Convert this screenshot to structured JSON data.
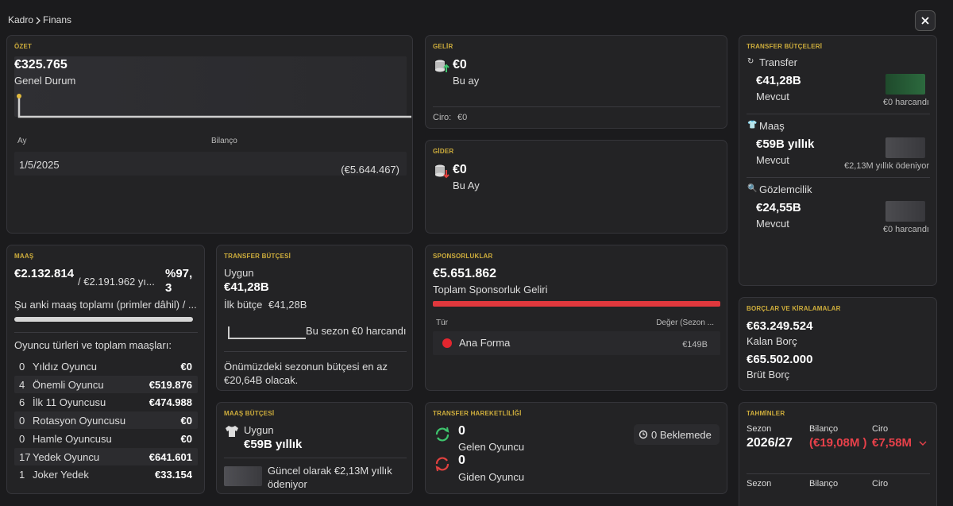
{
  "header": {
    "breadcrumb": [
      "Kadro",
      "Finans"
    ]
  },
  "summary": {
    "title": "ÖZET",
    "amount": "€325.765",
    "label": "Genel Durum",
    "table": {
      "headers": [
        "Ay",
        "Bilanço"
      ],
      "rows": [
        [
          "1/5/2025",
          "(€5.644.467)"
        ]
      ]
    }
  },
  "income": {
    "title": "GELİR",
    "amount": "€0",
    "period": "Bu ay",
    "footer_label": "Ciro:",
    "footer_value": "€0"
  },
  "expense": {
    "title": "GİDER",
    "amount": "€0",
    "period": "Bu Ay"
  },
  "transfer_budgets": {
    "title": "TRANSFER BÜTÇELERİ",
    "items": [
      {
        "name": "Transfer",
        "amount": "€41,28B",
        "status": "Mevcut",
        "note": "€0 harcandı"
      },
      {
        "name": "Maaş",
        "amount": "€59B yıllık",
        "status": "Mevcut",
        "note": "€2,13M yıllık ödeniyor"
      },
      {
        "name": "Gözlemcilik",
        "amount": "€24,55B",
        "status": "Mevcut",
        "note": "€0 harcandı"
      }
    ]
  },
  "wages": {
    "title": "MAAŞ",
    "current": "€2.132.814",
    "total": "/ €2.191.962 yı...",
    "percent": "%97,3",
    "description": "Şu anki maaş toplamı (primler dâhil) / ...",
    "list_title": "Oyuncu türleri ve toplam maaşları:",
    "rows": [
      [
        "0",
        "Yıldız Oyuncu",
        "€0"
      ],
      [
        "4",
        "Önemli Oyuncu",
        "€519.876"
      ],
      [
        "6",
        "İlk 11 Oyuncusu",
        "€474.988"
      ],
      [
        "0",
        "Rotasyon Oyuncusu",
        "€0"
      ],
      [
        "0",
        "Hamle Oyuncusu",
        "€0"
      ],
      [
        "17",
        "Yedek Oyuncu",
        "€641.601"
      ],
      [
        "1",
        "Joker Yedek",
        "€33.154"
      ]
    ]
  },
  "transfer_budget": {
    "title": "TRANSFER BÜTÇESİ",
    "status": "Uygun",
    "amount": "€41,28B",
    "initial_label": "İlk bütçe",
    "initial_value": "€41,28B",
    "spent": "Bu sezon €0 harcandı",
    "next_season": "Önümüzdeki sezonun bütçesi en az €20,64B olacak."
  },
  "wage_budget": {
    "title": "MAAŞ BÜTÇESİ",
    "status": "Uygun",
    "amount": "€59B yıllık",
    "note": "Güncel olarak €2,13M yıllık ödeniyor"
  },
  "sponsorships": {
    "title": "SPONSORLUKLAR",
    "amount": "€5.651.862",
    "label": "Toplam Sponsorluk Geliri",
    "table": {
      "headers": [
        "Tür",
        "Değer (Sezon ..."
      ],
      "rows": [
        [
          "Ana Forma",
          "€149B"
        ]
      ]
    }
  },
  "transfer_activity": {
    "title": "TRANSFER HAREKETLİLİĞİ",
    "incoming_count": "0",
    "incoming_label": "Gelen Oyuncu",
    "outgoing_count": "0",
    "outgoing_label": "Giden Oyuncu",
    "pending": "0 Beklemede"
  },
  "debts": {
    "title": "BORÇLAR VE KİRALAMALAR",
    "items": [
      {
        "amount": "€63.249.524",
        "label": "Kalan Borç"
      },
      {
        "amount": "€65.502.000",
        "label": "Brüt Borç"
      }
    ]
  },
  "forecasts": {
    "title": "TAHMİNLER",
    "rows": [
      {
        "labels": [
          "Sezon",
          "Bilanço",
          "Ciro"
        ],
        "values": [
          "2026/27",
          "(€19,08M )",
          "€7,58M"
        ]
      },
      {
        "labels": [
          "Sezon",
          "Bilanço",
          "Ciro"
        ]
      }
    ]
  }
}
